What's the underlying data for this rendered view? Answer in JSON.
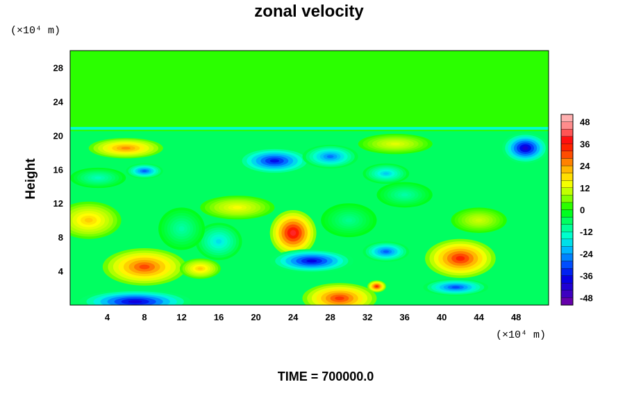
{
  "chart_data": {
    "type": "heatmap",
    "title": "zonal velocity",
    "xlabel": "",
    "ylabel": "Height",
    "x_unit": "(×10⁴ m)",
    "y_unit": "(×10⁴ m)",
    "xlim": [
      0,
      51.5
    ],
    "ylim": [
      0,
      30
    ],
    "x_ticks": [
      "4",
      "8",
      "12",
      "16",
      "20",
      "24",
      "28",
      "32",
      "36",
      "40",
      "44",
      "48"
    ],
    "y_ticks": [
      "4",
      "8",
      "12",
      "16",
      "20",
      "24",
      "28"
    ],
    "colorbar": {
      "range": [
        -52,
        52
      ],
      "step": 4,
      "ticks": [
        "48",
        "36",
        "24",
        "12",
        "0",
        "-12",
        "-24",
        "-36",
        "-48"
      ],
      "colors": [
        "#7a00a0",
        "#3000c8",
        "#0000e6",
        "#0050ff",
        "#00b4ff",
        "#00ffd8",
        "#00ff78",
        "#00ff00",
        "#a0ff00",
        "#ffff00",
        "#ffb400",
        "#ff5000",
        "#ff0000",
        "#ff8080",
        "#ffc0c0"
      ]
    },
    "background_value": 2,
    "features": [
      {
        "x": 42,
        "y": 5.5,
        "rx": 3.8,
        "ry": 2.3,
        "value": 38
      },
      {
        "x": 24,
        "y": 8.5,
        "rx": 2.5,
        "ry": 2.7,
        "value": 44
      },
      {
        "x": 8,
        "y": 4.5,
        "rx": 4.5,
        "ry": 2.2,
        "value": 34
      },
      {
        "x": 2,
        "y": 10,
        "rx": 3.5,
        "ry": 2.2,
        "value": 22
      },
      {
        "x": 14,
        "y": 4.3,
        "rx": 2.2,
        "ry": 1.2,
        "value": 22
      },
      {
        "x": 29,
        "y": 0.8,
        "rx": 4,
        "ry": 1.8,
        "value": 36
      },
      {
        "x": 33,
        "y": 2.2,
        "rx": 1,
        "ry": 0.7,
        "value": 38
      },
      {
        "x": 26,
        "y": 5.2,
        "rx": 4.5,
        "ry": 1.4,
        "value": -42
      },
      {
        "x": 34,
        "y": 6.3,
        "rx": 2.5,
        "ry": 1.2,
        "value": -32
      },
      {
        "x": 7,
        "y": 0.4,
        "rx": 6,
        "ry": 1.4,
        "value": -44
      },
      {
        "x": 41.5,
        "y": 2.1,
        "rx": 3.5,
        "ry": 1,
        "value": -34
      },
      {
        "x": 16,
        "y": 7.5,
        "rx": 2.5,
        "ry": 2.2,
        "value": -20
      },
      {
        "x": 12,
        "y": 9,
        "rx": 2.5,
        "ry": 2.5,
        "value": -12
      },
      {
        "x": 22,
        "y": 17,
        "rx": 4,
        "ry": 1.6,
        "value": -40
      },
      {
        "x": 28,
        "y": 17.5,
        "rx": 3,
        "ry": 1.4,
        "value": -30
      },
      {
        "x": 49,
        "y": 18.5,
        "rx": 2.5,
        "ry": 1.8,
        "value": -46
      },
      {
        "x": 8,
        "y": 15.8,
        "rx": 2,
        "ry": 0.9,
        "value": -32
      },
      {
        "x": 34,
        "y": 15.5,
        "rx": 2.5,
        "ry": 1.2,
        "value": -22
      },
      {
        "x": 36,
        "y": 13,
        "rx": 3,
        "ry": 1.5,
        "value": -12
      },
      {
        "x": 6,
        "y": 18.5,
        "rx": 4,
        "ry": 1.2,
        "value": 28
      },
      {
        "x": 35,
        "y": 19,
        "rx": 4,
        "ry": 1.2,
        "value": 14
      },
      {
        "x": 18,
        "y": 11.5,
        "rx": 4,
        "ry": 1.4,
        "value": 16
      },
      {
        "x": 44,
        "y": 10,
        "rx": 3,
        "ry": 1.5,
        "value": 12
      },
      {
        "x": 3,
        "y": 15,
        "rx": 3,
        "ry": 1.2,
        "value": -14
      },
      {
        "x": 30,
        "y": 10,
        "rx": 3,
        "ry": 2,
        "value": -10
      }
    ]
  },
  "footer": {
    "time_label": "TIME = 700000.0"
  }
}
